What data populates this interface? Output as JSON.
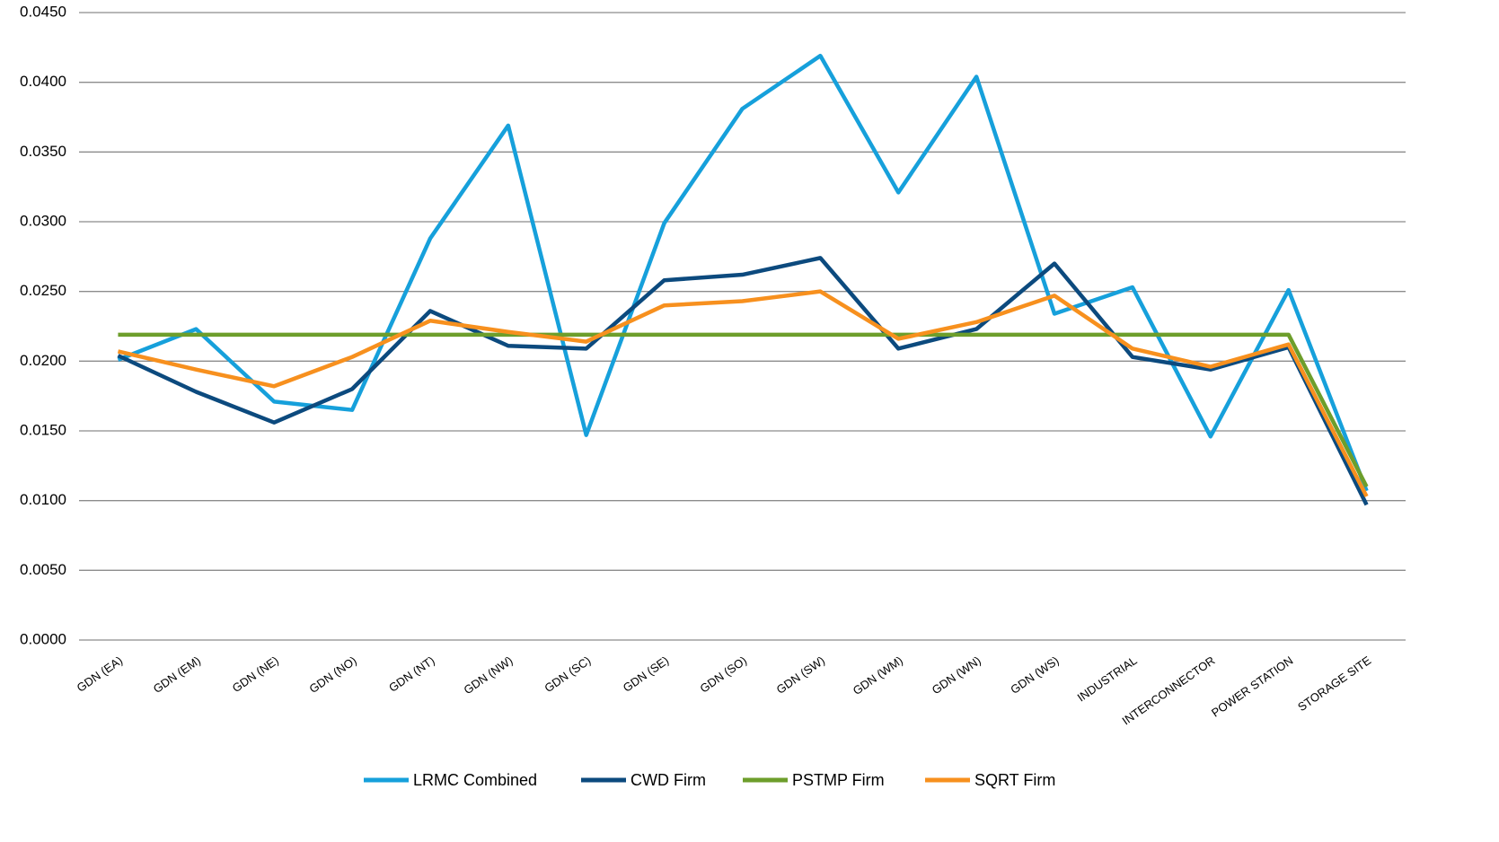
{
  "chart_data": {
    "type": "line",
    "categories": [
      "GDN (EA)",
      "GDN (EM)",
      "GDN (NE)",
      "GDN (NO)",
      "GDN (NT)",
      "GDN (NW)",
      "GDN (SC)",
      "GDN (SE)",
      "GDN (SO)",
      "GDN (SW)",
      "GDN (WM)",
      "GDN (WN)",
      "GDN (WS)",
      "INDUSTRIAL",
      "INTERCONNECTOR",
      "POWER STATION",
      "STORAGE SITE"
    ],
    "series": [
      {
        "name": "LRMC Combined",
        "color": "#16a0db",
        "values": [
          0.0201,
          0.0223,
          0.0171,
          0.0165,
          0.0288,
          0.0369,
          0.0147,
          0.0299,
          0.0381,
          0.0419,
          0.0321,
          0.0404,
          0.0234,
          0.0253,
          0.0146,
          0.0251,
          0.0107
        ]
      },
      {
        "name": "CWD Firm",
        "color": "#0c4a7e",
        "values": [
          0.0204,
          0.0178,
          0.0156,
          0.018,
          0.0236,
          0.0211,
          0.0209,
          0.0258,
          0.0262,
          0.0274,
          0.0209,
          0.0223,
          0.027,
          0.0203,
          0.0194,
          0.021,
          0.0097
        ]
      },
      {
        "name": "PSTMP Firm",
        "color": "#6d9e2b",
        "values": [
          0.0219,
          0.0219,
          0.0219,
          0.0219,
          0.0219,
          0.0219,
          0.0219,
          0.0219,
          0.0219,
          0.0219,
          0.0219,
          0.0219,
          0.0219,
          0.0219,
          0.0219,
          0.0219,
          0.011
        ]
      },
      {
        "name": "SQRT Firm",
        "color": "#f7901e",
        "values": [
          0.0207,
          0.0194,
          0.0182,
          0.0203,
          0.0229,
          0.0221,
          0.0214,
          0.024,
          0.0243,
          0.025,
          0.0216,
          0.0228,
          0.0247,
          0.0209,
          0.0196,
          0.0212,
          0.0103
        ]
      }
    ],
    "ylim": [
      0,
      0.045
    ],
    "yticks": [
      {
        "value": 0,
        "label": "0.0000"
      },
      {
        "value": 0.005,
        "label": "0.0050"
      },
      {
        "value": 0.01,
        "label": "0.0100"
      },
      {
        "value": 0.015,
        "label": "0.0150"
      },
      {
        "value": 0.02,
        "label": "0.0200"
      },
      {
        "value": 0.025,
        "label": "0.0250"
      },
      {
        "value": 0.03,
        "label": "0.0300"
      },
      {
        "value": 0.035,
        "label": "0.0350"
      },
      {
        "value": 0.04,
        "label": "0.0400"
      },
      {
        "value": 0.045,
        "label": "0.0450"
      }
    ],
    "grid": true,
    "legend": "bottom"
  }
}
